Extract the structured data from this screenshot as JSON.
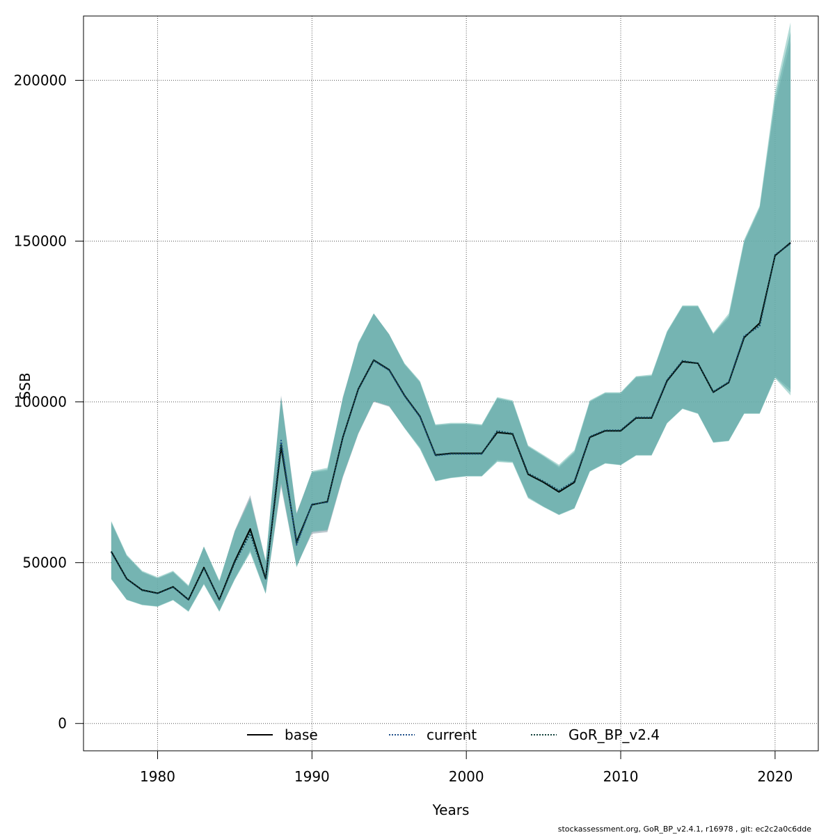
{
  "chart_data": {
    "type": "area",
    "title": "",
    "xlabel": "Years",
    "ylabel": "SSB",
    "xlim": [
      1975.2,
      2022.8
    ],
    "ylim": [
      -8500,
      220000
    ],
    "grid": true,
    "x_ticks": [
      1980,
      1990,
      2000,
      2010,
      2020
    ],
    "x_tick_labels": [
      "1980",
      "1990",
      "2000",
      "2010",
      "2020"
    ],
    "y_ticks": [
      0,
      50000,
      100000,
      150000,
      200000
    ],
    "y_tick_labels": [
      "0",
      "50000",
      "100000",
      "150000",
      "200000"
    ],
    "legend_position": "bottom",
    "years": [
      1977,
      1978,
      1979,
      1980,
      1981,
      1982,
      1983,
      1984,
      1985,
      1986,
      1987,
      1988,
      1989,
      1990,
      1991,
      1992,
      1993,
      1994,
      1995,
      1996,
      1997,
      1998,
      1999,
      2000,
      2001,
      2002,
      2003,
      2004,
      2005,
      2006,
      2007,
      2008,
      2009,
      2010,
      2011,
      2012,
      2013,
      2014,
      2015,
      2016,
      2017,
      2018,
      2019,
      2020,
      2021
    ],
    "series": [
      {
        "name": "base",
        "color": "#000000",
        "dash": "solid",
        "band_color": "#8a9aa8",
        "values": [
          53500,
          45000,
          41500,
          40500,
          42500,
          38500,
          48500,
          38500,
          50500,
          60500,
          45000,
          86000,
          56500,
          68000,
          69000,
          89000,
          104000,
          113000,
          110000,
          102000,
          95500,
          83500,
          84000,
          84000,
          84000,
          90500,
          90000,
          77500,
          75000,
          72000,
          75000,
          89000,
          91000,
          91000,
          95000,
          95000,
          106500,
          112500,
          112000,
          103000,
          106000,
          120000,
          124500,
          145500,
          149500
        ],
        "lower": [
          45000,
          38500,
          37000,
          36500,
          38500,
          35000,
          43500,
          35000,
          45000,
          54000,
          40500,
          73500,
          49000,
          59000,
          59500,
          76500,
          90000,
          100000,
          98500,
          92000,
          86000,
          75500,
          76500,
          77000,
          77000,
          82000,
          81500,
          70500,
          67500,
          65000,
          67000,
          78500,
          81000,
          80500,
          83500,
          83500,
          93500,
          98000,
          96500,
          87500,
          88000,
          96500,
          96500,
          108000,
          104000
        ],
        "upper": [
          62500,
          52000,
          47000,
          45000,
          47000,
          42500,
          55000,
          44000,
          60000,
          71000,
          50500,
          102000,
          65500,
          78000,
          78500,
          101500,
          118000,
          127500,
          121000,
          111500,
          106000,
          92500,
          93000,
          93000,
          92500,
          101000,
          100000,
          86000,
          83000,
          79500,
          84000,
          100000,
          102500,
          102500,
          107500,
          108000,
          121500,
          129500,
          129500,
          121000,
          126000,
          149500,
          160000,
          192500,
          212000
        ]
      },
      {
        "name": "current",
        "color": "#1f4f8a",
        "dash": "dotted",
        "band_color": "#76bdb6",
        "values": [
          53300,
          44900,
          41400,
          40400,
          42400,
          38400,
          48300,
          38400,
          50000,
          59000,
          44800,
          88000,
          55500,
          68200,
          68800,
          88800,
          103800,
          112800,
          109800,
          101800,
          95300,
          83300,
          83800,
          83800,
          83800,
          91000,
          90200,
          77800,
          75300,
          72500,
          75300,
          89200,
          91200,
          91200,
          95200,
          95200,
          106800,
          112800,
          112000,
          103200,
          106200,
          120500,
          123500,
          145800,
          149200
        ],
        "lower": [
          44800,
          38400,
          36800,
          36300,
          38300,
          34700,
          43200,
          34700,
          44700,
          53000,
          40300,
          75000,
          48500,
          59800,
          60300,
          77000,
          90300,
          100300,
          98800,
          91800,
          85300,
          75300,
          76300,
          76800,
          76800,
          81300,
          81000,
          70000,
          67300,
          64800,
          66800,
          78300,
          80800,
          80300,
          83300,
          83300,
          93300,
          97800,
          96300,
          87300,
          87800,
          96300,
          96300,
          107300,
          102000
        ],
        "upper": [
          63000,
          52500,
          47500,
          45500,
          47500,
          43000,
          55000,
          44500,
          59500,
          69500,
          50500,
          101000,
          65000,
          78500,
          79500,
          101000,
          118500,
          127500,
          121000,
          112000,
          106500,
          93000,
          93500,
          93500,
          93000,
          101500,
          100500,
          86500,
          83500,
          80500,
          85000,
          100500,
          103000,
          103000,
          108000,
          108500,
          122000,
          130000,
          130000,
          121500,
          127500,
          150500,
          161000,
          196500,
          218000
        ]
      },
      {
        "name": "GoR_BP_v2.4",
        "color": "#0f3f38",
        "dash": "dotted",
        "band_color": "#5aaaa6",
        "values": [
          53400,
          45000,
          41400,
          40500,
          42500,
          38500,
          48400,
          38500,
          50200,
          59500,
          44900,
          87000,
          56000,
          68100,
          68900,
          88900,
          103900,
          112900,
          109900,
          101900,
          95400,
          83400,
          83900,
          83900,
          83900,
          90800,
          90100,
          77700,
          75200,
          72300,
          75200,
          89100,
          91100,
          91100,
          95100,
          95100,
          106700,
          112700,
          112000,
          103100,
          106100,
          120200,
          124000,
          145600,
          149300
        ],
        "lower": [
          45000,
          38500,
          36900,
          36400,
          38400,
          34900,
          43400,
          34900,
          44900,
          53500,
          40400,
          74500,
          48800,
          59500,
          60000,
          76800,
          90200,
          100200,
          98700,
          91900,
          85600,
          75400,
          76400,
          76900,
          76900,
          81600,
          81300,
          70300,
          67400,
          64900,
          66900,
          78400,
          80900,
          80400,
          83400,
          83400,
          93400,
          97900,
          96400,
          87400,
          87900,
          96400,
          96400,
          107600,
          103000
        ],
        "upper": [
          62700,
          52200,
          47200,
          45200,
          47200,
          42700,
          55000,
          44200,
          59800,
          70200,
          50500,
          101500,
          65200,
          78200,
          79000,
          101200,
          118200,
          127500,
          121000,
          111800,
          106200,
          92800,
          93200,
          93200,
          92800,
          101200,
          100200,
          86200,
          83200,
          80000,
          84500,
          100200,
          102800,
          102800,
          107800,
          108200,
          121800,
          129800,
          129800,
          121200,
          126800,
          150000,
          160500,
          194500,
          215000
        ]
      }
    ]
  },
  "legend": {
    "items": [
      {
        "label": "base"
      },
      {
        "label": "current"
      },
      {
        "label": "GoR_BP_v2.4"
      }
    ]
  },
  "footer": {
    "text": "stockassessment.org, GoR_BP_v2.4.1, r16978 , git: ec2c2a0c6dde"
  }
}
